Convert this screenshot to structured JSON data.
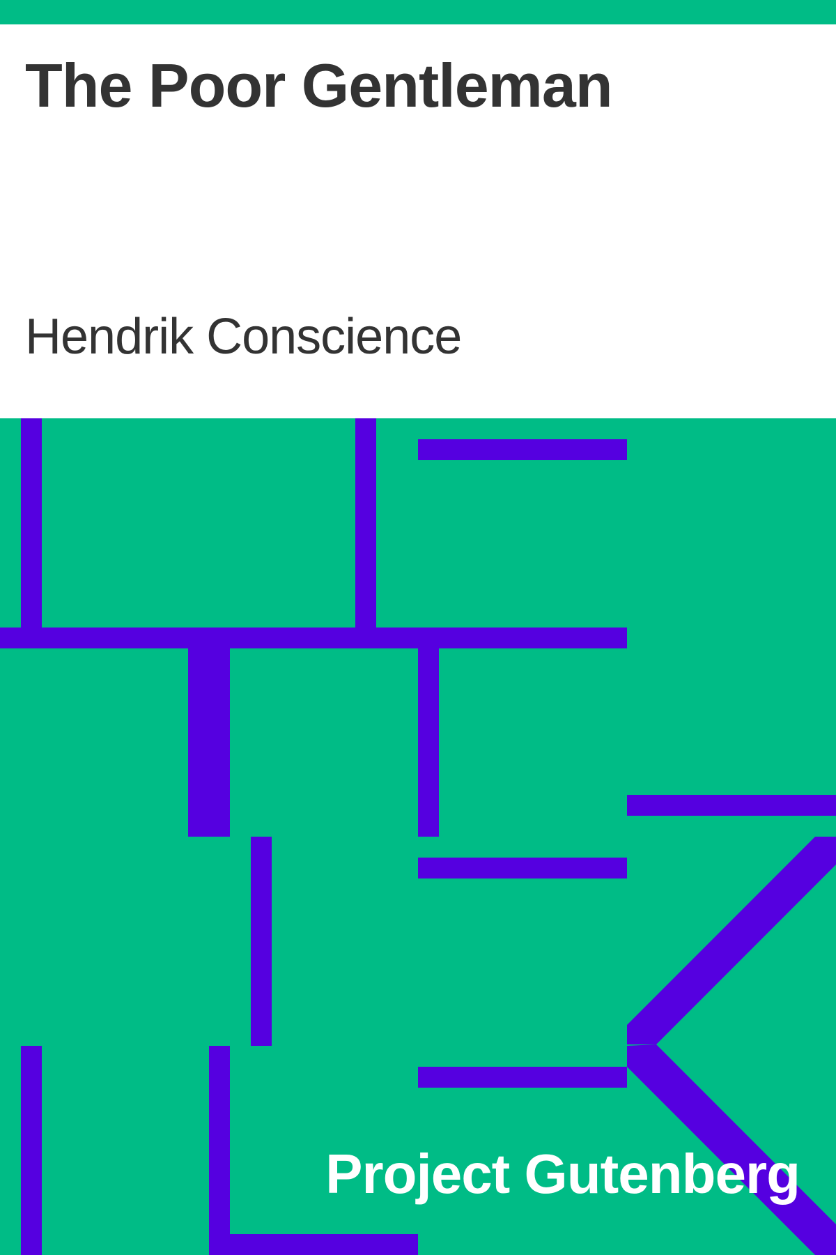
{
  "cover": {
    "title": "The Poor Gentleman",
    "author": "Hendrik Conscience",
    "publisher": "Project Gutenberg"
  },
  "colors": {
    "background": "#00bc86",
    "pattern": "#5500e0",
    "text_dark": "#333333",
    "text_light": "#ffffff",
    "panel": "#ffffff"
  }
}
